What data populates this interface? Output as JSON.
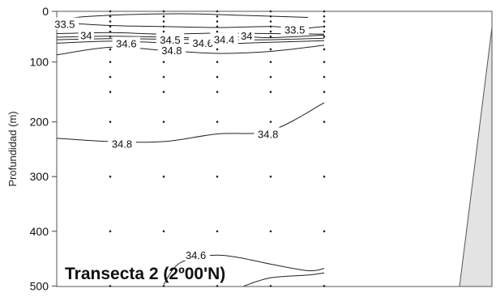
{
  "chart_data": {
    "type": "contour",
    "title": "Transecta 2 (2º00'N)",
    "ylabel": "Profundidad (m)",
    "xlabel": "",
    "ylim": [
      0,
      500
    ],
    "y_ticks": [
      {
        "value": 0,
        "label": "0"
      },
      {
        "value": 100,
        "label": "100"
      },
      {
        "value": 200,
        "label": "200"
      },
      {
        "value": 300,
        "label": "300"
      },
      {
        "value": 400,
        "label": "400"
      },
      {
        "value": 500,
        "label": "500"
      }
    ],
    "stations_x": [
      1,
      2,
      3,
      4,
      5
    ],
    "sample_depths": [
      0,
      10,
      20,
      30,
      40,
      50,
      75,
      100,
      125,
      150,
      200,
      300,
      400,
      500
    ],
    "contours": [
      {
        "value": 33.5,
        "label": "33.5",
        "points": [
          [
            0.15,
            15
          ],
          [
            0.6,
            10
          ],
          [
            1.5,
            6
          ],
          [
            2.5,
            5
          ],
          [
            3.5,
            8
          ],
          [
            4.7,
            12
          ]
        ]
      },
      {
        "value": 33.5,
        "label": "33.5",
        "points": [
          [
            0.0,
            22
          ],
          [
            1.0,
            28
          ],
          [
            2.0,
            30
          ],
          [
            3.0,
            32
          ],
          [
            4.0,
            30
          ],
          [
            4.5,
            34
          ],
          [
            5.0,
            30
          ]
        ]
      },
      {
        "value": 34,
        "label": "34",
        "points": [
          [
            0.0,
            44
          ],
          [
            1.0,
            42
          ],
          [
            2.0,
            45
          ],
          [
            3.0,
            43
          ],
          [
            4.0,
            44
          ],
          [
            5.0,
            45
          ]
        ]
      },
      {
        "value": 34.4,
        "label": "34.4",
        "points": [
          [
            0.0,
            51
          ],
          [
            1.0,
            49
          ],
          [
            2.0,
            51
          ],
          [
            3.0,
            53
          ],
          [
            3.5,
            50
          ],
          [
            4.0,
            52
          ],
          [
            5.0,
            47
          ]
        ]
      },
      {
        "value": 34.5,
        "label": "34.5",
        "points": [
          [
            0.0,
            56
          ],
          [
            1.0,
            54
          ],
          [
            2.0,
            55
          ],
          [
            3.0,
            56
          ],
          [
            4.0,
            56
          ],
          [
            5.0,
            53
          ]
        ]
      },
      {
        "value": 34.6,
        "label": "34.6",
        "points": [
          [
            0.0,
            63
          ],
          [
            1.0,
            59
          ],
          [
            2.0,
            62
          ],
          [
            3.0,
            64
          ],
          [
            4.0,
            61
          ],
          [
            5.0,
            58
          ]
        ]
      },
      {
        "value": 34.8,
        "label": "34.8",
        "points": [
          [
            0.0,
            86
          ],
          [
            1.0,
            71
          ],
          [
            2.0,
            77
          ],
          [
            3.0,
            83
          ],
          [
            4.0,
            79
          ],
          [
            5.0,
            67
          ]
        ]
      },
      {
        "value": 34.8,
        "label": "34.8",
        "points": [
          [
            0.0,
            230
          ],
          [
            1.0,
            236
          ],
          [
            2.0,
            236
          ],
          [
            3.0,
            222
          ],
          [
            4.0,
            216
          ],
          [
            5.0,
            168
          ]
        ]
      },
      {
        "value": 34.6,
        "label": "34.6",
        "points": [
          [
            2.0,
            497
          ],
          [
            2.3,
            458
          ],
          [
            2.9,
            444
          ],
          [
            3.4,
            448
          ],
          [
            4.0,
            460
          ],
          [
            4.7,
            472
          ],
          [
            5.0,
            468
          ]
        ]
      },
      {
        "value": 34.6,
        "label": "",
        "points": [
          [
            3.5,
            500
          ],
          [
            4.0,
            485
          ],
          [
            4.7,
            480
          ],
          [
            5.0,
            476
          ]
        ]
      }
    ],
    "contour_labels": [
      {
        "text": "33.5",
        "x": 0.15,
        "y": 25
      },
      {
        "text": "34",
        "x": 0.55,
        "y": 47
      },
      {
        "text": "34.6",
        "x": 1.3,
        "y": 63
      },
      {
        "text": "34.5",
        "x": 2.12,
        "y": 56
      },
      {
        "text": "34.8",
        "x": 2.15,
        "y": 77
      },
      {
        "text": "34.6",
        "x": 2.73,
        "y": 62
      },
      {
        "text": "34.4",
        "x": 3.13,
        "y": 55
      },
      {
        "text": "34",
        "x": 3.55,
        "y": 48
      },
      {
        "text": "33.5",
        "x": 4.45,
        "y": 36
      },
      {
        "text": "34.8",
        "x": 1.22,
        "y": 240
      },
      {
        "text": "34.8",
        "x": 3.95,
        "y": 222
      },
      {
        "text": "34.6",
        "x": 2.6,
        "y": 443
      }
    ]
  }
}
